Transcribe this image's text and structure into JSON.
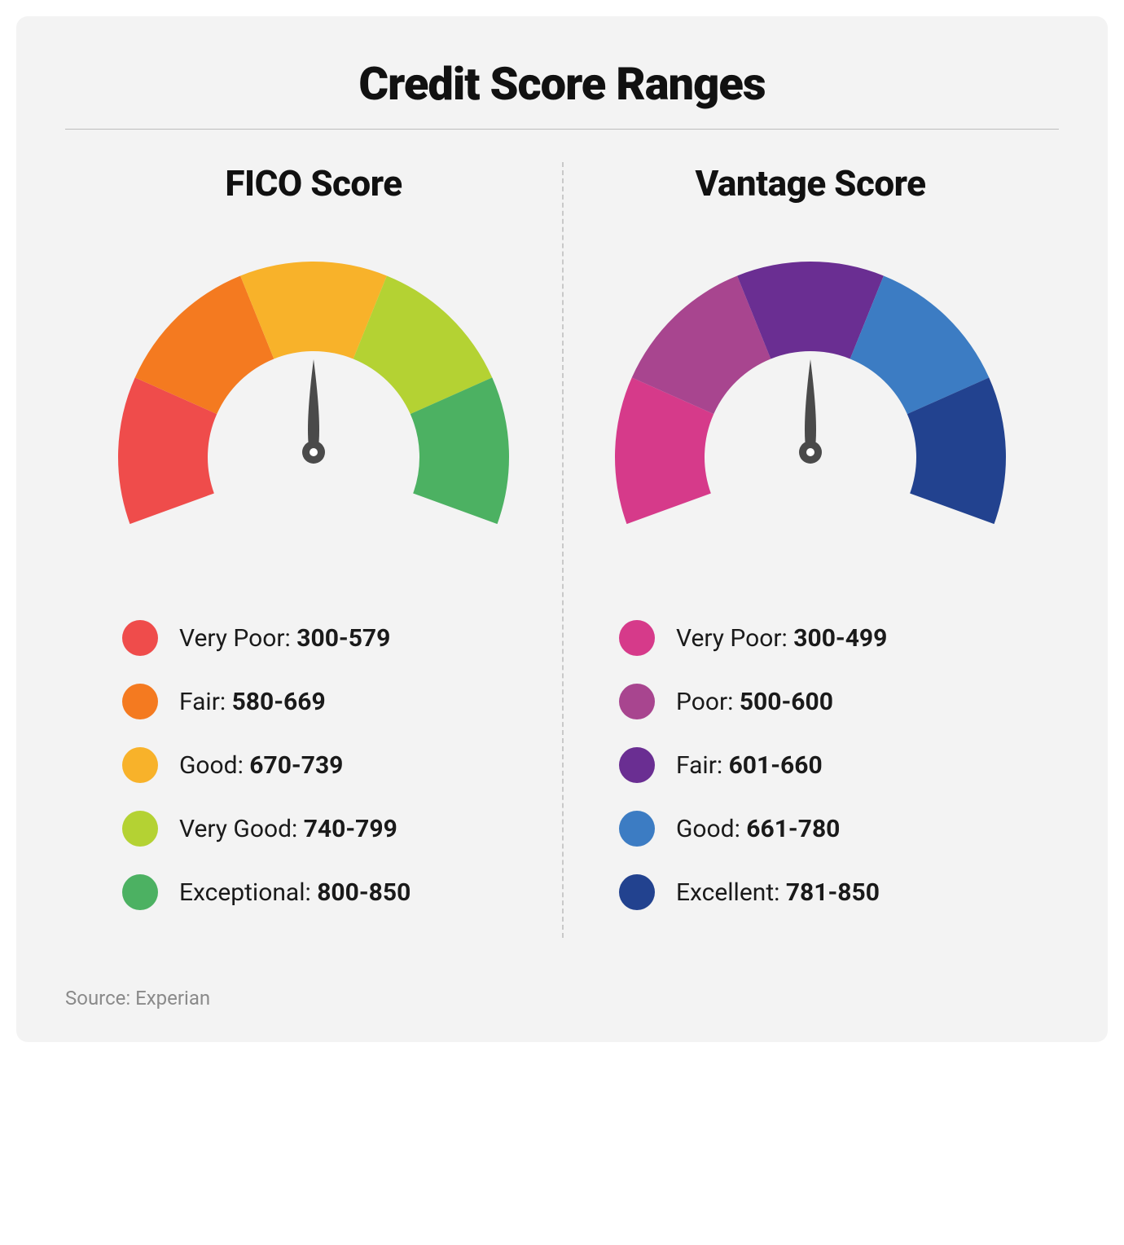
{
  "title": "Credit Score Ranges",
  "source": "Source: Experian",
  "background_color": "#f3f3f3",
  "needle_color": "#4a4a4a",
  "gauge_inner_radius": 130,
  "gauge_outer_radius": 240,
  "gauge_start_deg": 200,
  "gauge_end_deg": -20,
  "panels": [
    {
      "id": "fico",
      "title": "FICO Score",
      "segments": [
        {
          "label": "Very Poor",
          "range": "300-579",
          "color": "#ef4c4b"
        },
        {
          "label": "Fair",
          "range": "580-669",
          "color": "#f47a20"
        },
        {
          "label": "Good",
          "range": "670-739",
          "color": "#f8b22a"
        },
        {
          "label": "Very Good",
          "range": "740-799",
          "color": "#b4d233"
        },
        {
          "label": "Exceptional",
          "range": "800-850",
          "color": "#4cb162"
        }
      ]
    },
    {
      "id": "vantage",
      "title": "Vantage Score",
      "segments": [
        {
          "label": "Very Poor",
          "range": "300-499",
          "color": "#d63a8a"
        },
        {
          "label": "Poor",
          "range": "500-600",
          "color": "#a8458f"
        },
        {
          "label": "Fair",
          "range": "601-660",
          "color": "#6a2e92"
        },
        {
          "label": "Good",
          "range": "661-780",
          "color": "#3c7cc3"
        },
        {
          "label": "Excellent",
          "range": "781-850",
          "color": "#22428f"
        }
      ]
    }
  ]
}
